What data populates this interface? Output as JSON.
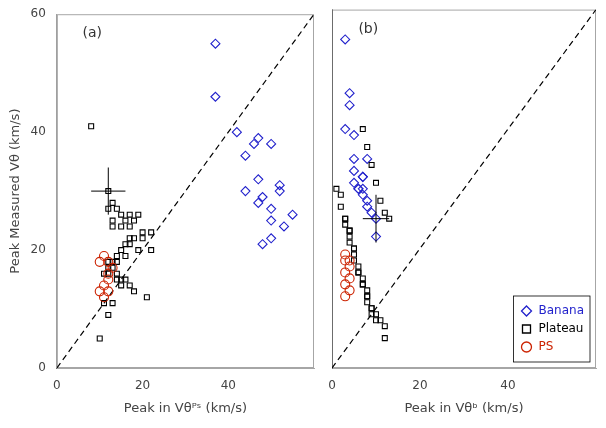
{
  "chart_data": [
    {
      "type": "scatter",
      "annotation": "(a)",
      "xlabel": "Peak in Vθᴾˢ (km/s)",
      "ylabel": "Peak Measured Vθ (km/s)",
      "xlim": [
        0,
        60
      ],
      "ylim": [
        0,
        60
      ],
      "xticks": [
        0,
        20,
        40
      ],
      "yticks": [
        0,
        20,
        40,
        60
      ],
      "grid": false,
      "series": [
        {
          "type": "line",
          "line_style": "dashed",
          "color": "#000000",
          "x": [
            0,
            60
          ],
          "values": [
            0,
            60
          ]
        },
        {
          "name": "Banana",
          "marker": "diamond",
          "color": "#2222CC",
          "x": [
            37,
            37,
            42,
            47,
            46,
            50,
            44,
            47,
            52,
            44,
            48,
            52,
            47,
            50,
            55,
            50,
            53,
            50,
            48
          ],
          "values": [
            55,
            46,
            40,
            39,
            38,
            38,
            36,
            32,
            31,
            30,
            29,
            30,
            28,
            27,
            26,
            25,
            24,
            22,
            21
          ]
        },
        {
          "name": "Plateau",
          "marker": "square",
          "color": "#000000",
          "x": [
            8,
            12,
            13,
            12,
            14,
            17,
            19,
            15,
            13,
            16,
            18,
            13,
            15,
            17,
            20,
            22,
            18,
            17,
            20,
            17,
            16,
            22,
            19,
            15,
            16,
            14,
            13,
            12,
            14,
            13,
            12,
            12,
            11,
            14,
            15,
            14,
            16,
            17,
            15,
            18,
            21,
            13,
            11,
            12,
            10
          ],
          "values": [
            41,
            30,
            28,
            27,
            27,
            26,
            26,
            26,
            25,
            25,
            25,
            24,
            24,
            24,
            23,
            23,
            22,
            22,
            22,
            21,
            21,
            20,
            20,
            20,
            19,
            19,
            18,
            18,
            18,
            17,
            17,
            16,
            16,
            16,
            15,
            15,
            15,
            14,
            14,
            13,
            12,
            11,
            11,
            9,
            5
          ],
          "error_bars": [
            {
              "x": 12,
              "y": 30,
              "xerr": 4,
              "yerr": 4
            }
          ]
        },
        {
          "name": "PS",
          "marker": "circle",
          "color": "#CC2200",
          "x": [
            10,
            11,
            12,
            13,
            12,
            12,
            11,
            10,
            12,
            11
          ],
          "values": [
            18,
            19,
            18,
            17,
            16,
            15,
            14,
            13,
            13,
            12
          ]
        }
      ]
    },
    {
      "type": "scatter",
      "annotation": "(b)",
      "xlabel": "Peak in Vθᵇ (km/s)",
      "xlim": [
        0,
        60
      ],
      "ylim": [
        0,
        60
      ],
      "xticks": [
        0,
        20,
        40
      ],
      "yticks": [
        0,
        20,
        40,
        60
      ],
      "grid": false,
      "tick_labels": "x",
      "legend": "lower right",
      "series": [
        {
          "type": "line",
          "line_style": "dashed",
          "color": "#000000",
          "x": [
            0,
            60
          ],
          "values": [
            0,
            60
          ]
        },
        {
          "name": "Banana",
          "marker": "diamond",
          "color": "#2222CC",
          "x": [
            3,
            4,
            4,
            5,
            5,
            5,
            6,
            6,
            7,
            7,
            7,
            8,
            8,
            9,
            10,
            10,
            3,
            5,
            7,
            8
          ],
          "values": [
            55,
            46,
            44,
            39,
            33,
            31,
            30,
            30,
            32,
            30,
            29,
            28,
            27,
            26,
            25,
            22,
            40,
            35,
            32,
            35
          ]
        },
        {
          "name": "Plateau",
          "marker": "square",
          "color": "#000000",
          "x": [
            1,
            2,
            2,
            3,
            3,
            3,
            4,
            4,
            4,
            4,
            5,
            5,
            5,
            5,
            6,
            6,
            6,
            7,
            7,
            7,
            8,
            8,
            8,
            8,
            9,
            9,
            9,
            10,
            10,
            11,
            12,
            12,
            7,
            8,
            9,
            10,
            11,
            12,
            13
          ],
          "values": [
            30,
            29,
            27,
            25,
            25,
            24,
            23,
            23,
            22,
            21,
            20,
            20,
            19,
            18,
            17,
            16,
            16,
            15,
            14,
            14,
            13,
            12,
            12,
            11,
            10,
            10,
            9,
            9,
            8,
            8,
            5,
            7,
            40,
            37,
            34,
            31,
            28,
            26,
            25
          ],
          "error_bars": [
            {
              "x": 10,
              "y": 25,
              "xerr": 3,
              "yerr": 4
            }
          ]
        },
        {
          "name": "PS",
          "marker": "circle",
          "color": "#CC2200",
          "x": [
            3,
            3,
            4,
            4,
            3,
            4,
            3,
            4,
            3
          ],
          "values": [
            18,
            19,
            18,
            17,
            16,
            15,
            14,
            13,
            12
          ]
        }
      ]
    }
  ]
}
